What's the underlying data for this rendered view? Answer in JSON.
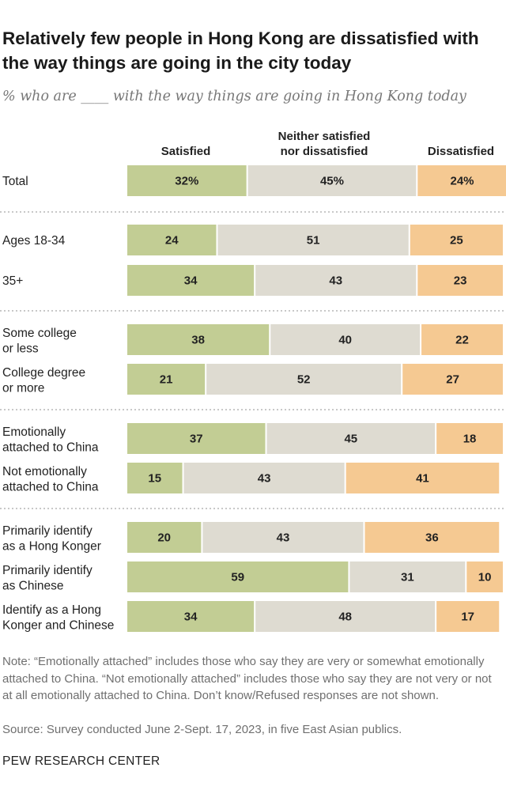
{
  "title": "Relatively few people in Hong Kong are dissatisfied with the way things are going in the city today",
  "subtitle": "% who are ____ with the way things are going in Hong Kong today",
  "columns": {
    "satisfied": "Satisfied",
    "neither_line1": "Neither satisfied",
    "neither_line2": "nor dissatisfied",
    "dissatisfied": "Dissatisfied"
  },
  "colors": {
    "satisfied": "#c2cd94",
    "neither": "#dedbd1",
    "dissatisfied": "#f5c992",
    "divider": "#b5b5b5"
  },
  "chart_data": {
    "type": "bar",
    "orientation": "horizontal",
    "stacked": true,
    "series_names": [
      "Satisfied",
      "Neither satisfied nor dissatisfied",
      "Dissatisfied"
    ],
    "groups": [
      {
        "rows": [
          {
            "label": [
              "Total"
            ],
            "values": [
              32,
              45,
              24
            ],
            "labels": [
              "32%",
              "45%",
              "24%"
            ]
          }
        ]
      },
      {
        "rows": [
          {
            "label": [
              "Ages 18-34"
            ],
            "values": [
              24,
              51,
              25
            ],
            "labels": [
              "24",
              "51",
              "25"
            ]
          },
          {
            "label": [
              "35+"
            ],
            "values": [
              34,
              43,
              23
            ],
            "labels": [
              "34",
              "43",
              "23"
            ]
          }
        ]
      },
      {
        "rows": [
          {
            "label": [
              "Some college",
              "or less"
            ],
            "values": [
              38,
              40,
              22
            ],
            "labels": [
              "38",
              "40",
              "22"
            ]
          },
          {
            "label": [
              "College degree",
              "or more"
            ],
            "values": [
              21,
              52,
              27
            ],
            "labels": [
              "21",
              "52",
              "27"
            ]
          }
        ]
      },
      {
        "rows": [
          {
            "label": [
              "Emotionally",
              "attached to China"
            ],
            "values": [
              37,
              45,
              18
            ],
            "labels": [
              "37",
              "45",
              "18"
            ]
          },
          {
            "label": [
              "Not emotionally",
              "attached to China"
            ],
            "values": [
              15,
              43,
              41
            ],
            "labels": [
              "15",
              "43",
              "41"
            ]
          }
        ]
      },
      {
        "rows": [
          {
            "label": [
              "Primarily identify",
              "as a Hong Konger"
            ],
            "values": [
              20,
              43,
              36
            ],
            "labels": [
              "20",
              "43",
              "36"
            ]
          },
          {
            "label": [
              "Primarily identify",
              "as Chinese"
            ],
            "values": [
              59,
              31,
              10
            ],
            "labels": [
              "59",
              "31",
              "10"
            ]
          },
          {
            "label": [
              "Identify as a Hong",
              "Konger and Chinese"
            ],
            "values": [
              34,
              48,
              17
            ],
            "labels": [
              "34",
              "48",
              "17"
            ]
          }
        ]
      }
    ]
  },
  "note": "Note: “Emotionally attached” includes those who say they are very or somewhat emotionally attached to China. “Not emotionally attached” includes those who say they are not very or not at all emotionally attached to China. Don’t know/Refused responses are not shown.",
  "source": "Source: Survey conducted June 2-Sept. 17, 2023, in five East Asian publics.",
  "logo": "PEW RESEARCH CENTER"
}
